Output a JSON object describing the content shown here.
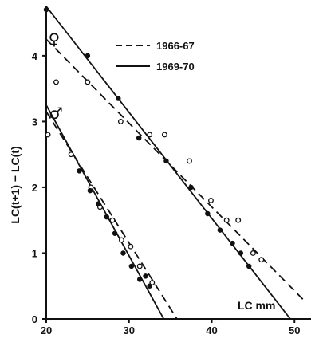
{
  "chart_data": {
    "type": "scatter",
    "xlabel": "LC mm",
    "ylabel": "LC(t+1) − LC(t)",
    "xlim": [
      20,
      52
    ],
    "ylim": [
      0,
      4.75
    ],
    "x_ticks": [
      "20",
      "30",
      "40",
      "50"
    ],
    "y_ticks": [
      "0",
      "1",
      "2",
      "3",
      "4"
    ],
    "legend": {
      "position": "top-right",
      "entries": [
        {
          "label": "1966-67",
          "style": "dashed"
        },
        {
          "label": "1969-70",
          "style": "solid"
        }
      ]
    },
    "groups": [
      {
        "sex_label": "♀",
        "series": [
          {
            "name": "1966-67",
            "marker": "open-circle",
            "line": "dashed",
            "fit": {
              "x": [
                20,
                51.4
              ],
              "y": [
                4.25,
                0.25
              ]
            },
            "points": [
              [
                21.2,
                3.6
              ],
              [
                25,
                3.6
              ],
              [
                29,
                3.0
              ],
              [
                32.5,
                2.8
              ],
              [
                34.3,
                2.8
              ],
              [
                37.3,
                2.4
              ],
              [
                39.9,
                1.8
              ],
              [
                41.8,
                1.5
              ],
              [
                43.2,
                1.5
              ],
              [
                45,
                1.0
              ],
              [
                46,
                0.9
              ]
            ]
          },
          {
            "name": "1969-70",
            "marker": "filled-circle",
            "line": "solid",
            "fit": {
              "x": [
                20,
                49.5
              ],
              "y": [
                4.75,
                0.0
              ]
            },
            "points": [
              [
                20,
                4.7
              ],
              [
                25,
                4.0
              ],
              [
                28.7,
                3.35
              ],
              [
                31.2,
                2.75
              ],
              [
                34.5,
                2.4
              ],
              [
                37.5,
                2.0
              ],
              [
                39.5,
                1.6
              ],
              [
                41,
                1.35
              ],
              [
                42.5,
                1.15
              ],
              [
                43.5,
                1.0
              ],
              [
                44.5,
                0.8
              ]
            ]
          }
        ]
      },
      {
        "sex_label": "♂",
        "series": [
          {
            "name": "1966-67",
            "marker": "open-circle",
            "line": "dashed",
            "fit": {
              "x": [
                20,
                35.8
              ],
              "y": [
                3.15,
                0.0
              ]
            },
            "points": [
              [
                20.2,
                2.8
              ],
              [
                23,
                2.5
              ],
              [
                25.4,
                2.0
              ],
              [
                26.5,
                1.7
              ],
              [
                28,
                1.5
              ],
              [
                29.1,
                1.2
              ],
              [
                30.2,
                1.1
              ],
              [
                31.3,
                0.8
              ],
              [
                32.8,
                0.55
              ]
            ]
          },
          {
            "name": "1969-70",
            "marker": "filled-circle",
            "line": "solid",
            "fit": {
              "x": [
                20,
                34.2
              ],
              "y": [
                3.25,
                0.0
              ]
            },
            "points": [
              [
                24,
                2.25
              ],
              [
                25.3,
                1.95
              ],
              [
                26.3,
                1.75
              ],
              [
                27.3,
                1.55
              ],
              [
                28.3,
                1.3
              ],
              [
                29.3,
                1.0
              ],
              [
                30.3,
                0.8
              ],
              [
                31.3,
                0.6
              ],
              [
                32.0,
                0.65
              ],
              [
                32.5,
                0.5
              ]
            ]
          }
        ]
      }
    ]
  }
}
